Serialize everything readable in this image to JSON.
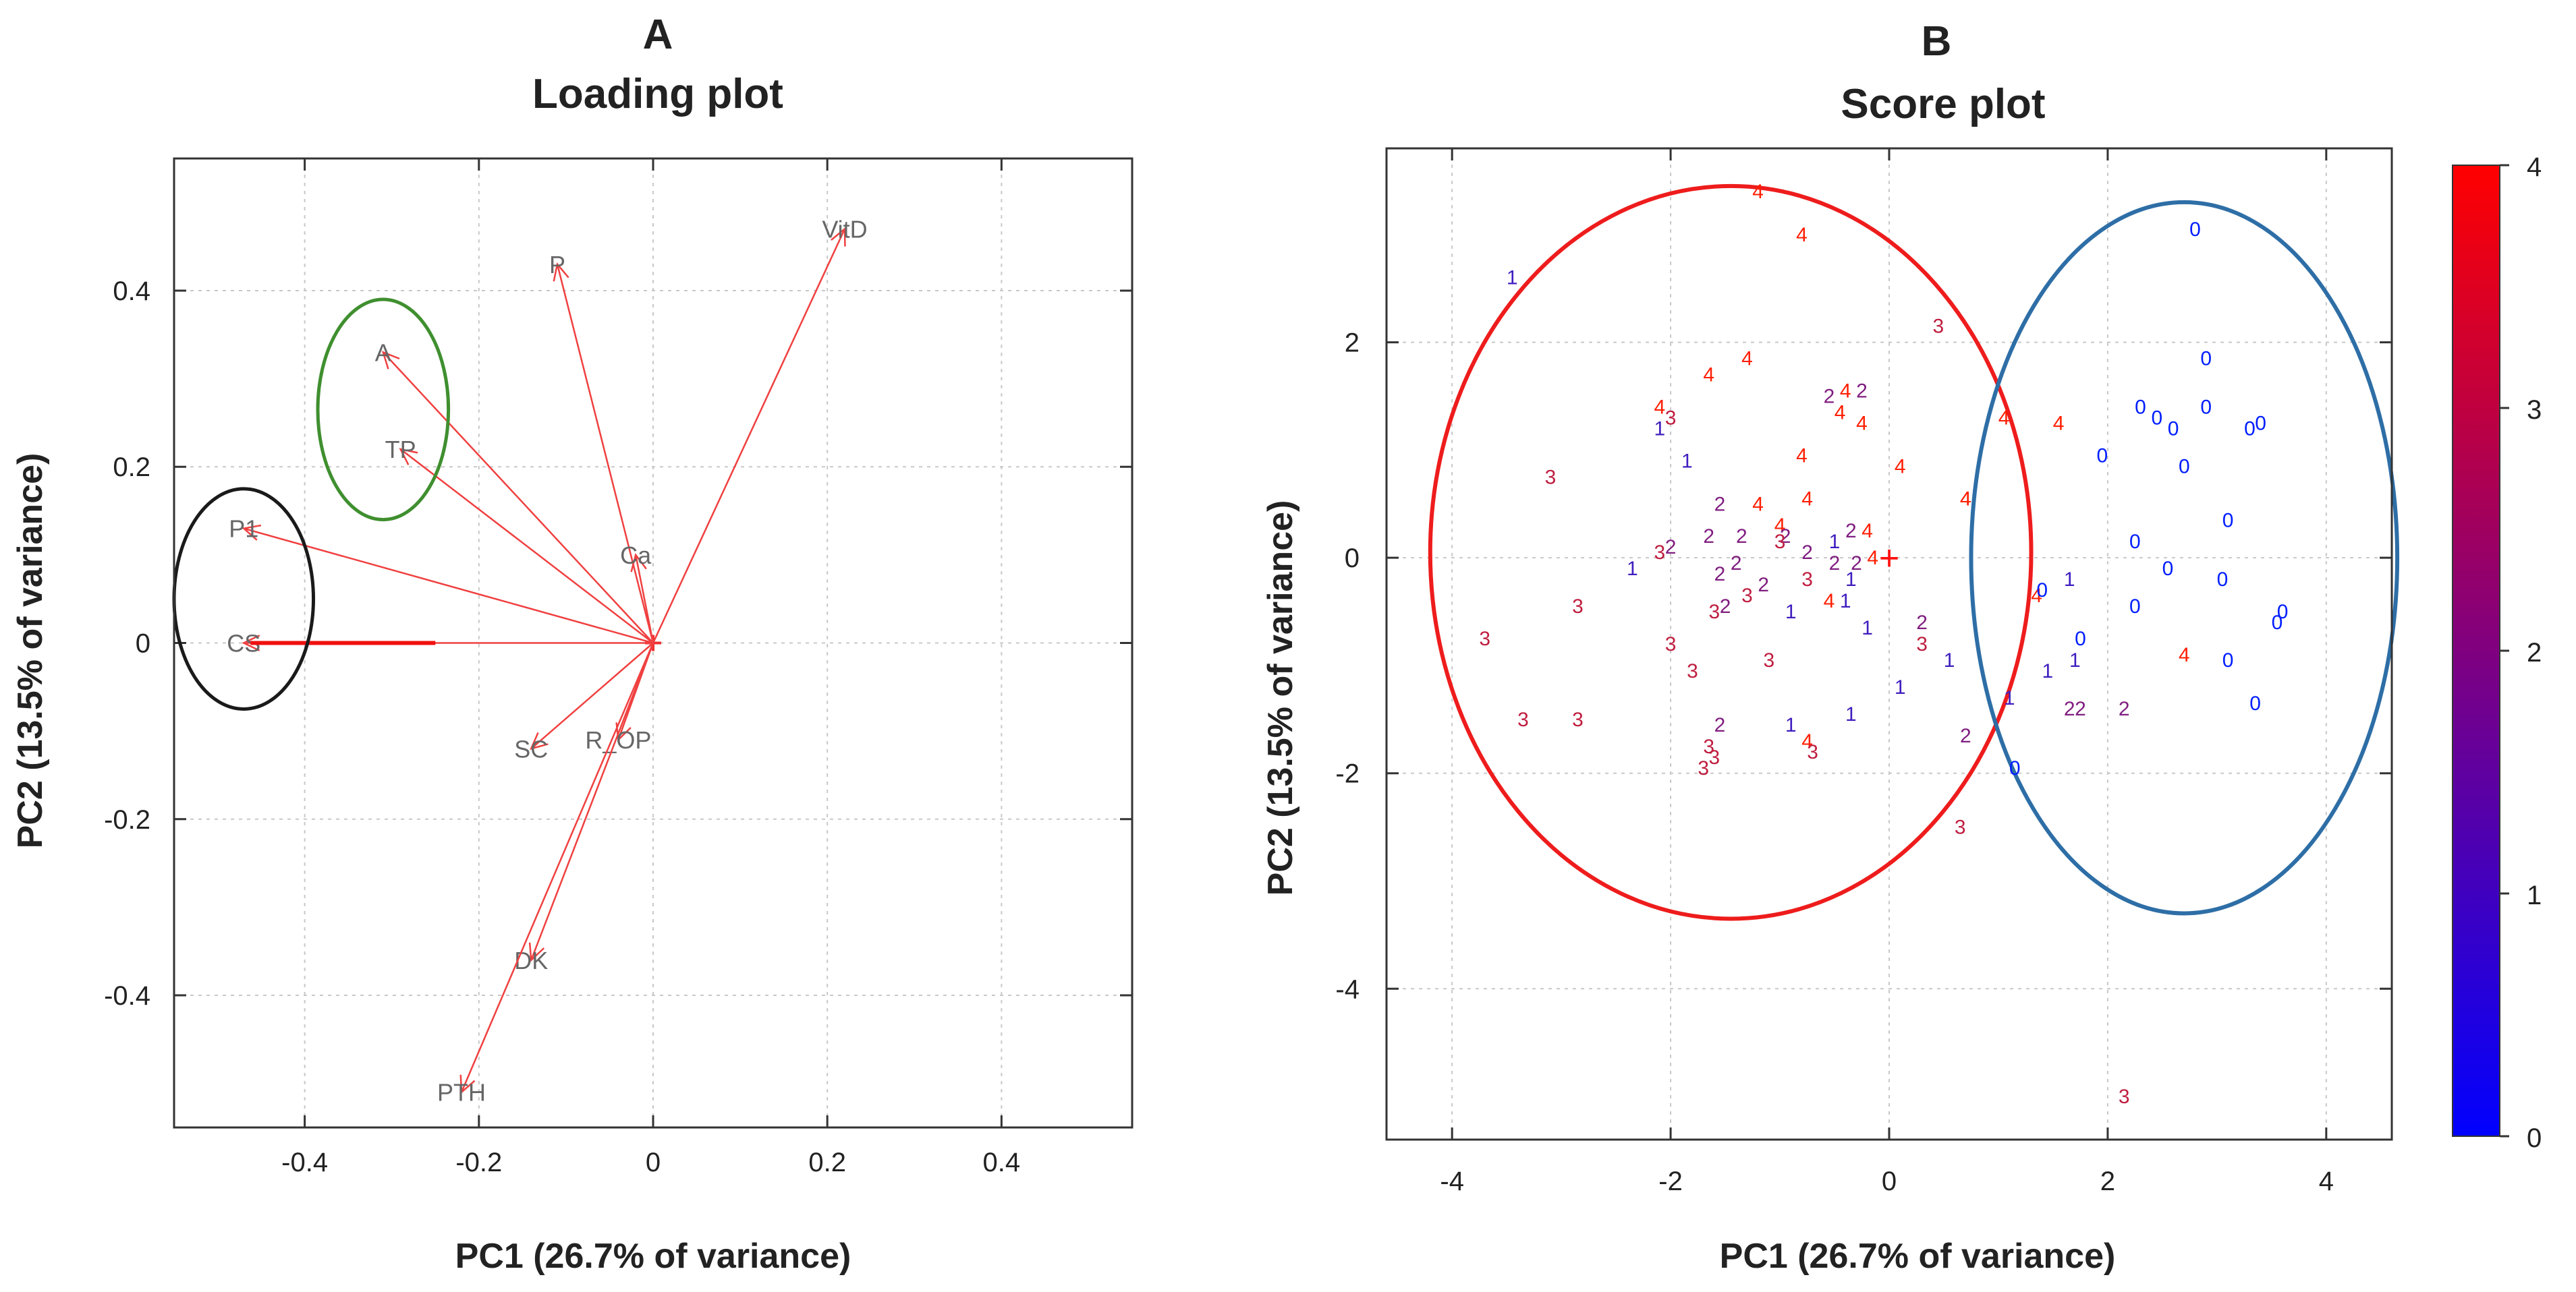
{
  "chart_data": [
    {
      "panel_letter": "A",
      "title": "Loading plot",
      "type": "scatter",
      "xlabel": "PC1 (26.7% of variance)",
      "ylabel": "PC2 (13.5% of variance)",
      "xlim": [
        -0.55,
        0.55
      ],
      "ylim": [
        -0.55,
        0.55
      ],
      "xticks": [
        -0.4,
        -0.2,
        0,
        0.2,
        0.4
      ],
      "yticks": [
        -0.4,
        -0.2,
        0,
        0.2,
        0.4
      ],
      "xtick_labels": [
        "-0.4",
        "-0.2",
        "0",
        "0.2",
        "0.4"
      ],
      "ytick_labels": [
        "-0.4",
        "-0.2",
        "0",
        "0.2",
        "0.4"
      ],
      "grid": true,
      "vectors": [
        {
          "label": "VitD",
          "x": 0.22,
          "y": 0.47
        },
        {
          "label": "P",
          "x": -0.11,
          "y": 0.43
        },
        {
          "label": "A",
          "x": -0.31,
          "y": 0.33
        },
        {
          "label": "TP",
          "x": -0.29,
          "y": 0.22
        },
        {
          "label": "P1",
          "x": -0.47,
          "y": 0.13
        },
        {
          "label": "Ca",
          "x": -0.02,
          "y": 0.1
        },
        {
          "label": "CS",
          "x": -0.47,
          "y": 0.0
        },
        {
          "label": "SC",
          "x": -0.14,
          "y": -0.12
        },
        {
          "label": "R_OP",
          "x": -0.04,
          "y": -0.11
        },
        {
          "label": "DK",
          "x": -0.14,
          "y": -0.36
        },
        {
          "label": "PTH",
          "x": -0.22,
          "y": -0.51
        }
      ],
      "annotations": [
        {
          "shape": "ellipse",
          "color": "#3f8f2f",
          "cx": -0.31,
          "cy": 0.265,
          "rx": 0.075,
          "ry": 0.125
        },
        {
          "shape": "ellipse",
          "color": "#1a1a1a",
          "cx": -0.47,
          "cy": 0.05,
          "rx": 0.08,
          "ry": 0.125
        }
      ]
    },
    {
      "panel_letter": "B",
      "title": "Score plot",
      "type": "scatter",
      "xlabel": "PC1 (26.7% of variance)",
      "ylabel": "PC2 (13.5% of variance)",
      "xlim": [
        -4.6,
        4.6
      ],
      "ylim": [
        -5.4,
        3.8
      ],
      "xticks": [
        -4,
        -2,
        0,
        2,
        4
      ],
      "yticks": [
        -4,
        -2,
        0,
        2
      ],
      "xtick_labels": [
        "-4",
        "-2",
        "0",
        "2",
        "4"
      ],
      "ytick_labels": [
        "-4",
        "-2",
        "0",
        "2"
      ],
      "grid": true,
      "colorbar": {
        "min": 0,
        "max": 4,
        "labels": [
          "0",
          "1",
          "2",
          "3",
          "4"
        ],
        "colors": [
          "#0000ff",
          "#ff0000"
        ]
      },
      "centroid_marker": {
        "x": 0,
        "y": 0,
        "label": "+"
      },
      "annotations": [
        {
          "shape": "ellipse",
          "color": "#ee1c1c",
          "cx": -1.45,
          "cy": 0.05,
          "rx": 2.75,
          "ry": 3.4
        },
        {
          "shape": "ellipse",
          "color": "#2e6ea6",
          "cx": 2.7,
          "cy": 0.0,
          "rx": 1.95,
          "ry": 3.3
        }
      ],
      "points": [
        {
          "x": -1.2,
          "y": 3.4,
          "g": "4"
        },
        {
          "x": -0.8,
          "y": 3.0,
          "g": "4"
        },
        {
          "x": -3.45,
          "y": 2.6,
          "g": "1"
        },
        {
          "x": 0.45,
          "y": 2.15,
          "g": "3"
        },
        {
          "x": -1.3,
          "y": 1.85,
          "g": "4"
        },
        {
          "x": -1.65,
          "y": 1.7,
          "g": "4"
        },
        {
          "x": -0.55,
          "y": 1.5,
          "g": "2"
        },
        {
          "x": -0.4,
          "y": 1.55,
          "g": "4"
        },
        {
          "x": -0.25,
          "y": 1.55,
          "g": "2"
        },
        {
          "x": -0.45,
          "y": 1.35,
          "g": "4"
        },
        {
          "x": -0.25,
          "y": 1.25,
          "g": "4"
        },
        {
          "x": -2.1,
          "y": 1.4,
          "g": "4"
        },
        {
          "x": -2.0,
          "y": 1.3,
          "g": "3"
        },
        {
          "x": -2.1,
          "y": 1.2,
          "g": "1"
        },
        {
          "x": -1.85,
          "y": 0.9,
          "g": "1"
        },
        {
          "x": -0.8,
          "y": 0.95,
          "g": "4"
        },
        {
          "x": 0.1,
          "y": 0.85,
          "g": "4"
        },
        {
          "x": -3.1,
          "y": 0.75,
          "g": "3"
        },
        {
          "x": -0.75,
          "y": 0.55,
          "g": "4"
        },
        {
          "x": -1.2,
          "y": 0.5,
          "g": "4"
        },
        {
          "x": -1.55,
          "y": 0.5,
          "g": "2"
        },
        {
          "x": -1.0,
          "y": 0.3,
          "g": "4"
        },
        {
          "x": 0.7,
          "y": 0.55,
          "g": "4"
        },
        {
          "x": -0.35,
          "y": 0.25,
          "g": "2"
        },
        {
          "x": -0.2,
          "y": 0.25,
          "g": "4"
        },
        {
          "x": -0.95,
          "y": 0.2,
          "g": "2"
        },
        {
          "x": -1.35,
          "y": 0.2,
          "g": "2"
        },
        {
          "x": -1.65,
          "y": 0.2,
          "g": "2"
        },
        {
          "x": -2.0,
          "y": 0.1,
          "g": "2"
        },
        {
          "x": -2.1,
          "y": 0.05,
          "g": "3"
        },
        {
          "x": -1.0,
          "y": 0.15,
          "g": "3"
        },
        {
          "x": -0.75,
          "y": 0.05,
          "g": "2"
        },
        {
          "x": -0.5,
          "y": 0.15,
          "g": "1"
        },
        {
          "x": -0.5,
          "y": -0.05,
          "g": "2"
        },
        {
          "x": -0.3,
          "y": -0.05,
          "g": "2"
        },
        {
          "x": -0.15,
          "y": 0.0,
          "g": "4"
        },
        {
          "x": -0.35,
          "y": -0.2,
          "g": "1"
        },
        {
          "x": -0.75,
          "y": -0.2,
          "g": "3"
        },
        {
          "x": -1.15,
          "y": -0.25,
          "g": "2"
        },
        {
          "x": -1.4,
          "y": -0.05,
          "g": "2"
        },
        {
          "x": -1.55,
          "y": -0.15,
          "g": "2"
        },
        {
          "x": -2.35,
          "y": -0.1,
          "g": "1"
        },
        {
          "x": -1.3,
          "y": -0.35,
          "g": "3"
        },
        {
          "x": -1.6,
          "y": -0.5,
          "g": "3"
        },
        {
          "x": -1.5,
          "y": -0.45,
          "g": "2"
        },
        {
          "x": -0.9,
          "y": -0.5,
          "g": "1"
        },
        {
          "x": -0.55,
          "y": -0.4,
          "g": "4"
        },
        {
          "x": -0.4,
          "y": -0.4,
          "g": "1"
        },
        {
          "x": -2.85,
          "y": -0.45,
          "g": "3"
        },
        {
          "x": -3.7,
          "y": -0.75,
          "g": "3"
        },
        {
          "x": -2.0,
          "y": -0.8,
          "g": "3"
        },
        {
          "x": -1.8,
          "y": -1.05,
          "g": "3"
        },
        {
          "x": -1.1,
          "y": -0.95,
          "g": "3"
        },
        {
          "x": -0.2,
          "y": -0.65,
          "g": "1"
        },
        {
          "x": 0.3,
          "y": -0.6,
          "g": "2"
        },
        {
          "x": 0.3,
          "y": -0.8,
          "g": "3"
        },
        {
          "x": 0.55,
          "y": -0.95,
          "g": "1"
        },
        {
          "x": 0.1,
          "y": -1.2,
          "g": "1"
        },
        {
          "x": -3.35,
          "y": -1.5,
          "g": "3"
        },
        {
          "x": -2.85,
          "y": -1.5,
          "g": "3"
        },
        {
          "x": -1.55,
          "y": -1.55,
          "g": "2"
        },
        {
          "x": -1.65,
          "y": -1.75,
          "g": "3"
        },
        {
          "x": -1.6,
          "y": -1.85,
          "g": "3"
        },
        {
          "x": -1.7,
          "y": -1.95,
          "g": "3"
        },
        {
          "x": -0.9,
          "y": -1.55,
          "g": "1"
        },
        {
          "x": -0.75,
          "y": -1.7,
          "g": "4"
        },
        {
          "x": -0.7,
          "y": -1.8,
          "g": "3"
        },
        {
          "x": -0.35,
          "y": -1.45,
          "g": "1"
        },
        {
          "x": 0.7,
          "y": -1.65,
          "g": "2"
        },
        {
          "x": 0.65,
          "y": -2.5,
          "g": "3"
        },
        {
          "x": 2.15,
          "y": -5.0,
          "g": "3"
        },
        {
          "x": 1.05,
          "y": 1.3,
          "g": "4"
        },
        {
          "x": 1.55,
          "y": 1.25,
          "g": "4"
        },
        {
          "x": 0.7,
          "y": 0.55,
          "g": "4"
        },
        {
          "x": 1.35,
          "y": -0.35,
          "g": "4"
        },
        {
          "x": 2.7,
          "y": -0.9,
          "g": "4"
        },
        {
          "x": 1.1,
          "y": -1.3,
          "g": "1"
        },
        {
          "x": 1.45,
          "y": -1.05,
          "g": "1"
        },
        {
          "x": 1.7,
          "y": -0.95,
          "g": "1"
        },
        {
          "x": 1.65,
          "y": -1.4,
          "g": "2"
        },
        {
          "x": 1.75,
          "y": -1.4,
          "g": "2"
        },
        {
          "x": 2.15,
          "y": -1.4,
          "g": "2"
        },
        {
          "x": 1.65,
          "y": -0.2,
          "g": "1"
        },
        {
          "x": 1.4,
          "y": -0.3,
          "g": "0"
        },
        {
          "x": 1.15,
          "y": -1.95,
          "g": "0"
        },
        {
          "x": 2.8,
          "y": 3.05,
          "g": "0"
        },
        {
          "x": 2.9,
          "y": 1.85,
          "g": "0"
        },
        {
          "x": 2.3,
          "y": 1.4,
          "g": "0"
        },
        {
          "x": 2.45,
          "y": 1.3,
          "g": "0"
        },
        {
          "x": 2.6,
          "y": 1.2,
          "g": "0"
        },
        {
          "x": 2.9,
          "y": 1.4,
          "g": "0"
        },
        {
          "x": 3.3,
          "y": 1.2,
          "g": "0"
        },
        {
          "x": 3.4,
          "y": 1.25,
          "g": "0"
        },
        {
          "x": 2.7,
          "y": 0.85,
          "g": "0"
        },
        {
          "x": 1.95,
          "y": 0.95,
          "g": "0"
        },
        {
          "x": 3.1,
          "y": 0.35,
          "g": "0"
        },
        {
          "x": 2.25,
          "y": 0.15,
          "g": "0"
        },
        {
          "x": 2.55,
          "y": -0.1,
          "g": "0"
        },
        {
          "x": 3.05,
          "y": -0.2,
          "g": "0"
        },
        {
          "x": 2.25,
          "y": -0.45,
          "g": "0"
        },
        {
          "x": 1.75,
          "y": -0.75,
          "g": "0"
        },
        {
          "x": 3.6,
          "y": -0.5,
          "g": "0"
        },
        {
          "x": 3.55,
          "y": -0.6,
          "g": "0"
        },
        {
          "x": 3.1,
          "y": -0.95,
          "g": "0"
        },
        {
          "x": 3.35,
          "y": -1.35,
          "g": "0"
        }
      ]
    }
  ]
}
